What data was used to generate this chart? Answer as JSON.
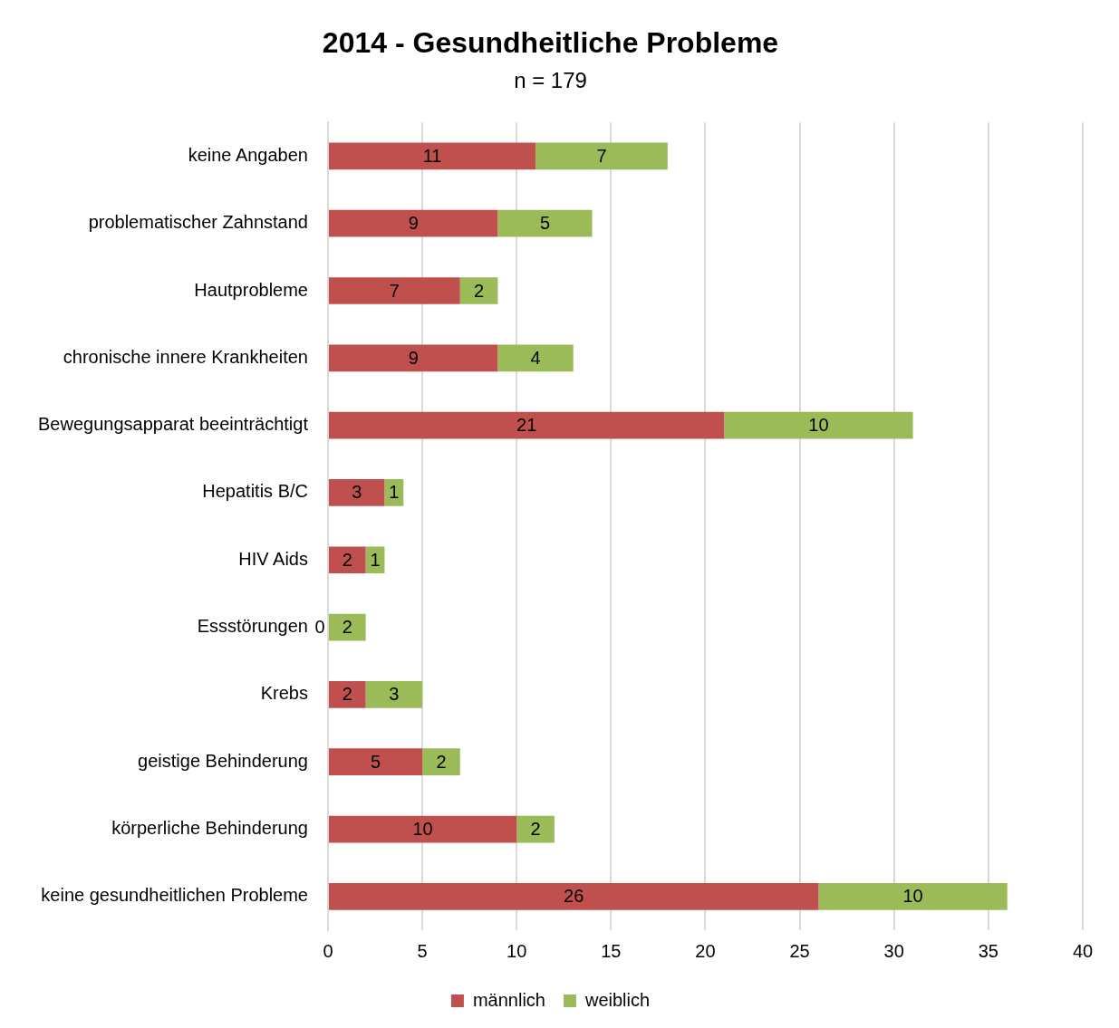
{
  "chart_data": {
    "type": "bar",
    "orientation": "horizontal",
    "stacked": true,
    "title": "2014 - Gesundheitliche Probleme",
    "subtitle": "n = 179",
    "categories": [
      "keine Angaben",
      "problematischer Zahnstand",
      "Hautprobleme",
      "chronische innere Krankheiten",
      "Bewegungsapparat beeinträchtigt",
      "Hepatitis B/C",
      "HIV Aids",
      "Essstörungen",
      "Krebs",
      "geistige Behinderung",
      "körperliche Behinderung",
      "keine gesundheitlichen Probleme"
    ],
    "series": [
      {
        "name": "männlich",
        "color": "#c0504d",
        "values": [
          11,
          9,
          7,
          9,
          21,
          3,
          2,
          0,
          2,
          5,
          10,
          26
        ]
      },
      {
        "name": "weiblich",
        "color": "#9bbb59",
        "values": [
          7,
          5,
          2,
          4,
          10,
          1,
          1,
          2,
          3,
          2,
          2,
          10
        ]
      }
    ],
    "xlim": [
      0,
      40
    ],
    "xticks": [
      0,
      5,
      10,
      15,
      20,
      25,
      30,
      35,
      40
    ],
    "grid": "x",
    "legend": "bottom",
    "data_labels": true
  }
}
